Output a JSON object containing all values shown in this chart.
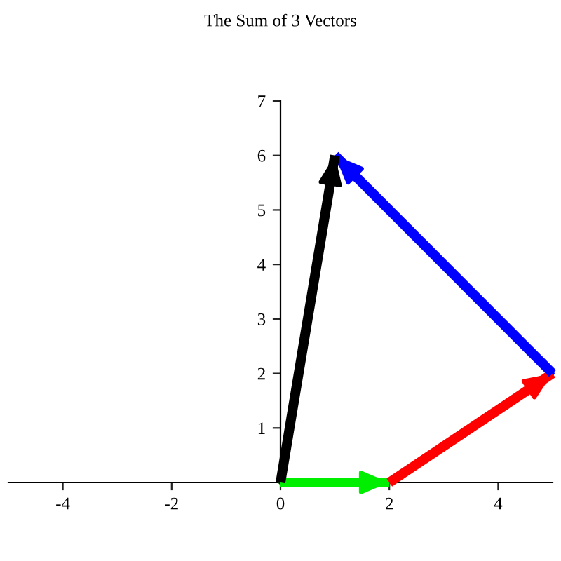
{
  "chart_data": {
    "type": "line",
    "title": "The Sum of 3 Vectors",
    "series": [
      {
        "color": "#00ee00",
        "x": [
          0,
          2
        ],
        "values": [
          0,
          0
        ]
      },
      {
        "color": "#ff0000",
        "x": [
          2,
          5
        ],
        "values": [
          0,
          2
        ]
      },
      {
        "color": "#0000ff",
        "x": [
          5,
          1
        ],
        "values": [
          2,
          6
        ]
      },
      {
        "color": "#000000",
        "x": [
          0,
          1
        ],
        "values": [
          0,
          6
        ]
      }
    ],
    "xlim": [
      -5,
      5
    ],
    "ylim": [
      0,
      7
    ],
    "xticks": [
      -4,
      -2,
      0,
      2,
      4
    ],
    "yticks": [
      1,
      2,
      3,
      4,
      5,
      6,
      7
    ],
    "grid": false,
    "legend": false,
    "marker": "none",
    "line_style": "solid"
  }
}
